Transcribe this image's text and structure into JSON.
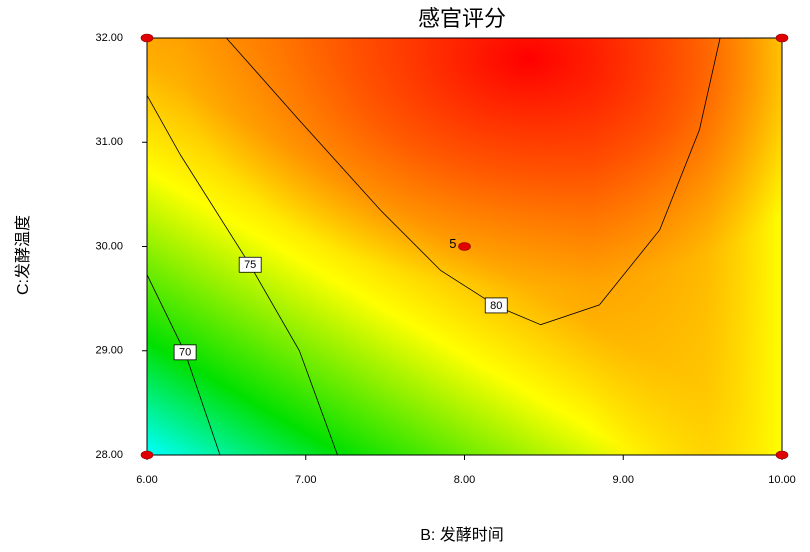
{
  "chart_data": {
    "type": "contour",
    "title": "感官评分",
    "x_label": "B: 发酵时间",
    "y_label": "C:发酵温度",
    "xlim": [
      6,
      10
    ],
    "ylim": [
      28,
      32
    ],
    "xticks": [
      {
        "value": 6,
        "label": "6.00"
      },
      {
        "value": 7,
        "label": "7.00"
      },
      {
        "value": 8,
        "label": "8.00"
      },
      {
        "value": 9,
        "label": "9.00"
      },
      {
        "value": 10,
        "label": "10.00"
      }
    ],
    "yticks": [
      {
        "value": 28,
        "label": "28.00"
      },
      {
        "value": 29,
        "label": "29.00"
      },
      {
        "value": 30,
        "label": "30.00"
      },
      {
        "value": 31,
        "label": "31.00"
      },
      {
        "value": 32,
        "label": "32.00"
      }
    ],
    "contours": [
      {
        "level": 70,
        "x": [
          6.0,
          6.24,
          6.46
        ],
        "y": [
          29.73,
          28.98,
          28.0
        ]
      },
      {
        "level": 75,
        "x": [
          6.0,
          6.21,
          6.65,
          6.96,
          7.2
        ],
        "y": [
          31.45,
          30.88,
          29.82,
          29.0,
          28.0
        ]
      },
      {
        "level": 80,
        "x": [
          6.5,
          6.96,
          7.47,
          7.85,
          8.2,
          8.48,
          8.85,
          9.23,
          9.48,
          9.61
        ],
        "y": [
          32.0,
          31.21,
          30.35,
          29.77,
          29.43,
          29.25,
          29.44,
          30.16,
          31.12,
          32.0
        ]
      }
    ],
    "design_points": {
      "x": [
        6,
        6,
        10,
        10
      ],
      "y": [
        28,
        32,
        28,
        32
      ],
      "color": "#e00000"
    },
    "center_point": {
      "x": 8,
      "y": 30,
      "count": 5
    }
  }
}
